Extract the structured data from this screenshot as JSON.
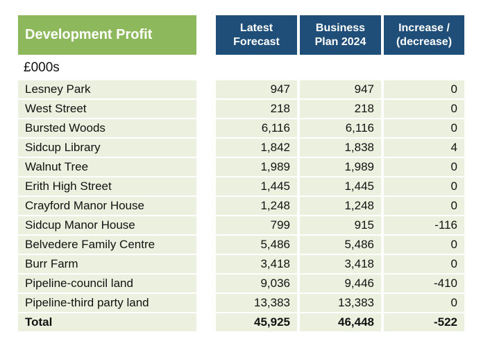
{
  "table": {
    "title": "Development Profit",
    "unit": "£000s",
    "headers": [
      "Latest\nForecast",
      "Business\nPlan 2024",
      "Increase /\n(decrease)"
    ],
    "rows": [
      [
        "Lesney Park",
        "947",
        "947",
        "0"
      ],
      [
        "West Street",
        "218",
        "218",
        "0"
      ],
      [
        "Bursted Woods",
        "6,116",
        "6,116",
        "0"
      ],
      [
        "Sidcup Library",
        "1,842",
        "1,838",
        "4"
      ],
      [
        "Walnut Tree",
        "1,989",
        "1,989",
        "0"
      ],
      [
        "Erith High Street",
        "1,445",
        "1,445",
        "0"
      ],
      [
        "Crayford Manor House",
        "1,248",
        "1,248",
        "0"
      ],
      [
        "Sidcup Manor House",
        "799",
        "915",
        "-116"
      ],
      [
        "Belvedere Family Centre",
        "5,486",
        "5,486",
        "0"
      ],
      [
        "Burr Farm",
        "3,418",
        "3,418",
        "0"
      ],
      [
        "Pipeline-council land",
        "9,036",
        "9,446",
        "-410"
      ],
      [
        "Pipeline-third party land",
        "13,383",
        "13,383",
        "0"
      ]
    ],
    "total": [
      "Total",
      "45,925",
      "46,448",
      "-522"
    ]
  },
  "colors": {
    "title_header": "#8db85c",
    "column_header": "#1f4e79",
    "row_fill": "#ebf1de"
  }
}
